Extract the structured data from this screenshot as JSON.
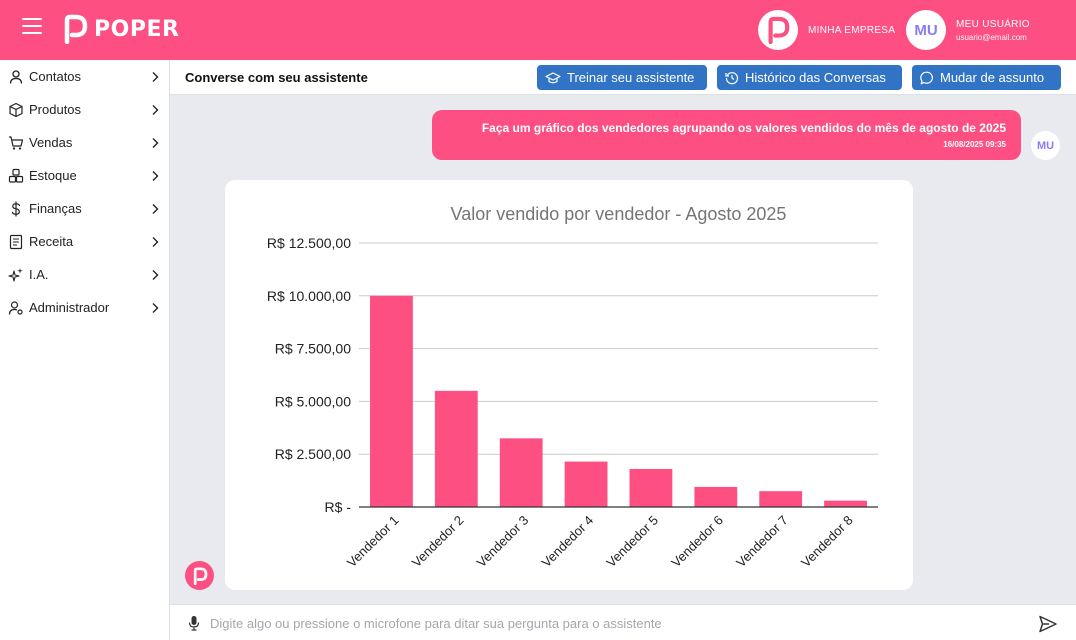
{
  "brand": {
    "logo_text": "POPER",
    "color": "#fd4f82"
  },
  "header": {
    "company_name": "MINHA EMPRESA",
    "user_initials": "MU",
    "user_name": "MEU USUÁRIO",
    "user_email": "usuario@email.com"
  },
  "sidebar": {
    "items": [
      {
        "label": "Contatos",
        "icon": "user-icon"
      },
      {
        "label": "Produtos",
        "icon": "box-icon"
      },
      {
        "label": "Vendas",
        "icon": "cart-icon"
      },
      {
        "label": "Estoque",
        "icon": "boxes-icon"
      },
      {
        "label": "Finanças",
        "icon": "dollar-icon"
      },
      {
        "label": "Receita",
        "icon": "receipt-icon"
      },
      {
        "label": "I.A.",
        "icon": "sparkles-icon"
      },
      {
        "label": "Administrador",
        "icon": "user-gear-icon"
      }
    ]
  },
  "chat": {
    "title": "Converse com seu assistente",
    "buttons": {
      "train": "Treinar seu assistente",
      "history": "Histórico das Conversas",
      "change_subject": "Mudar de assunto"
    },
    "button_color": "#3173c4",
    "user_message": {
      "text": "Faça um gráfico dos vendedores agrupando os valores vendidos do mês de agosto de 2025",
      "time": "16/08/2025 09:35",
      "initials": "MU"
    },
    "input_placeholder": "Digite algo ou pressione o microfone para ditar sua pergunta para o assistente"
  },
  "chart_data": {
    "type": "bar",
    "title": "Valor vendido por vendedor - Agosto 2025",
    "categories": [
      "Vendedor 1",
      "Vendedor 2",
      "Vendedor 3",
      "Vendedor 4",
      "Vendedor 5",
      "Vendedor 6",
      "Vendedor 7",
      "Vendedor 8"
    ],
    "values": [
      10000,
      5500,
      3250,
      2150,
      1800,
      950,
      750,
      300
    ],
    "ylim": [
      0,
      12500
    ],
    "yticks": [
      {
        "value": 0,
        "label": "R$ -"
      },
      {
        "value": 2500,
        "label": "R$ 2.500,00"
      },
      {
        "value": 5000,
        "label": "R$ 5.000,00"
      },
      {
        "value": 7500,
        "label": "R$ 7.500,00"
      },
      {
        "value": 10000,
        "label": "R$ 10.000,00"
      },
      {
        "value": 12500,
        "label": "R$ 12.500,00"
      }
    ],
    "grid": true,
    "legend": "none",
    "bar_color": "#fd4f82"
  }
}
